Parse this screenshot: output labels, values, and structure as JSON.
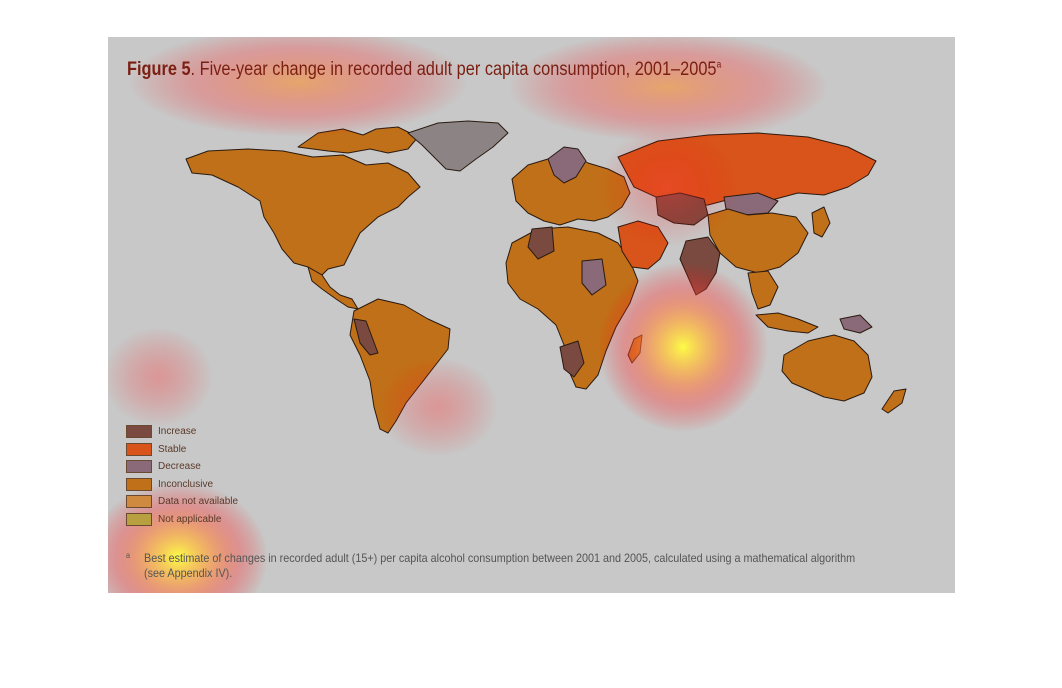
{
  "figure": {
    "title_bold": "Figure 5",
    "title_rest": ". Five-year change in recorded adult per capita consumption, 2001–2005",
    "title_footnote_mark": "a"
  },
  "legend": {
    "items": [
      {
        "label": "Increase",
        "color": "#7a4a40"
      },
      {
        "label": "Stable",
        "color": "#d8541a"
      },
      {
        "label": "Decrease",
        "color": "#8a6a78"
      },
      {
        "label": "Inconclusive",
        "color": "#c07018"
      },
      {
        "label": "Data not available",
        "color": "#d08a40"
      },
      {
        "label": "Not applicable",
        "color": "#b8a040"
      }
    ]
  },
  "footnote": {
    "mark": "a",
    "text": "Best estimate of changes in recorded adult (15+) per capita alcohol consumption between 2001 and 2005, calculated using a mathematical algorithm (see Appendix IV)."
  },
  "colors": {
    "inconclusive": "#c07018",
    "increase": "#7a4a40",
    "stable": "#d8541a",
    "decrease": "#8a6a78",
    "greenland": "#8c8484"
  }
}
